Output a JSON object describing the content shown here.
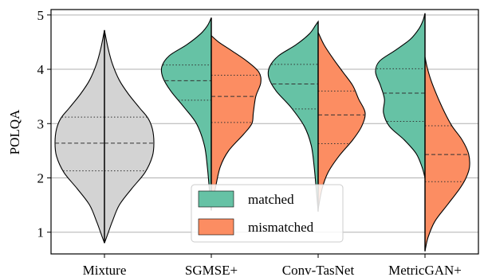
{
  "chart_data": {
    "type": "violin",
    "ylabel": "POLQA",
    "ylim": [
      0.6,
      5.1
    ],
    "yticks": [
      1,
      2,
      3,
      4,
      5
    ],
    "grid": "horizontal",
    "legend_placement": "lower-center",
    "categories": [
      "Mixture",
      "SGMSE+",
      "Conv-TasNet",
      "MetricGAN+"
    ],
    "series": [
      {
        "name": "matched",
        "color": "#66c2a5"
      },
      {
        "name": "mismatched",
        "color": "#fc8d62"
      }
    ],
    "single_color": "#d3d3d3",
    "violins": [
      {
        "category": "Mixture",
        "mode": "full",
        "range": [
          0.8,
          4.72
        ],
        "quartiles": [
          2.13,
          2.64,
          3.12
        ],
        "profile": [
          [
            0.8,
            0.0
          ],
          [
            1.0,
            0.08
          ],
          [
            1.2,
            0.16
          ],
          [
            1.5,
            0.3
          ],
          [
            1.8,
            0.55
          ],
          [
            2.1,
            0.82
          ],
          [
            2.4,
            0.97
          ],
          [
            2.65,
            1.0
          ],
          [
            2.9,
            0.97
          ],
          [
            3.1,
            0.88
          ],
          [
            3.3,
            0.7
          ],
          [
            3.55,
            0.48
          ],
          [
            3.8,
            0.3
          ],
          [
            4.1,
            0.16
          ],
          [
            4.4,
            0.07
          ],
          [
            4.72,
            0.0
          ]
        ]
      },
      {
        "category": "SGMSE+",
        "mode": "split",
        "left": {
          "series": "matched",
          "range": [
            1.4,
            4.95
          ],
          "quartiles": [
            3.43,
            3.79,
            4.08
          ],
          "profile": [
            [
              1.4,
              0.0
            ],
            [
              1.8,
              0.04
            ],
            [
              2.2,
              0.08
            ],
            [
              2.6,
              0.14
            ],
            [
              3.0,
              0.3
            ],
            [
              3.3,
              0.55
            ],
            [
              3.6,
              0.82
            ],
            [
              3.85,
              0.98
            ],
            [
              4.05,
              1.0
            ],
            [
              4.25,
              0.85
            ],
            [
              4.45,
              0.5
            ],
            [
              4.65,
              0.22
            ],
            [
              4.8,
              0.08
            ],
            [
              4.95,
              0.0
            ]
          ]
        },
        "right": {
          "series": "mismatched",
          "range": [
            1.45,
            4.62
          ],
          "quartiles": [
            3.02,
            3.5,
            3.89
          ],
          "profile": [
            [
              1.45,
              0.0
            ],
            [
              1.8,
              0.08
            ],
            [
              2.2,
              0.18
            ],
            [
              2.5,
              0.35
            ],
            [
              2.8,
              0.65
            ],
            [
              3.0,
              0.82
            ],
            [
              3.2,
              0.85
            ],
            [
              3.5,
              0.9
            ],
            [
              3.75,
              1.0
            ],
            [
              3.95,
              0.96
            ],
            [
              4.15,
              0.72
            ],
            [
              4.35,
              0.4
            ],
            [
              4.5,
              0.15
            ],
            [
              4.62,
              0.0
            ]
          ]
        }
      },
      {
        "category": "Conv-TasNet",
        "mode": "split",
        "left": {
          "series": "matched",
          "range": [
            1.38,
            4.88
          ],
          "quartiles": [
            3.27,
            3.73,
            4.09
          ],
          "profile": [
            [
              1.38,
              0.0
            ],
            [
              1.8,
              0.04
            ],
            [
              2.2,
              0.08
            ],
            [
              2.6,
              0.14
            ],
            [
              2.95,
              0.28
            ],
            [
              3.3,
              0.55
            ],
            [
              3.6,
              0.85
            ],
            [
              3.85,
              1.0
            ],
            [
              4.05,
              0.98
            ],
            [
              4.25,
              0.8
            ],
            [
              4.45,
              0.45
            ],
            [
              4.65,
              0.18
            ],
            [
              4.8,
              0.06
            ],
            [
              4.88,
              0.0
            ]
          ]
        },
        "right": {
          "series": "mismatched",
          "range": [
            1.42,
            4.68
          ],
          "quartiles": [
            2.63,
            3.16,
            3.6
          ],
          "profile": [
            [
              1.42,
              0.0
            ],
            [
              1.8,
              0.08
            ],
            [
              2.1,
              0.2
            ],
            [
              2.4,
              0.42
            ],
            [
              2.7,
              0.7
            ],
            [
              2.95,
              0.88
            ],
            [
              3.2,
              0.95
            ],
            [
              3.45,
              0.82
            ],
            [
              3.7,
              0.7
            ],
            [
              3.95,
              0.5
            ],
            [
              4.2,
              0.3
            ],
            [
              4.45,
              0.12
            ],
            [
              4.68,
              0.0
            ]
          ]
        }
      },
      {
        "category": "MetricGAN+",
        "mode": "split",
        "left": {
          "series": "matched",
          "range": [
            2.0,
            5.03
          ],
          "quartiles": [
            3.04,
            3.56,
            4.01
          ],
          "profile": [
            [
              2.0,
              0.0
            ],
            [
              2.2,
              0.06
            ],
            [
              2.45,
              0.18
            ],
            [
              2.7,
              0.42
            ],
            [
              2.95,
              0.72
            ],
            [
              3.2,
              0.84
            ],
            [
              3.45,
              0.82
            ],
            [
              3.7,
              0.9
            ],
            [
              3.95,
              1.0
            ],
            [
              4.15,
              0.92
            ],
            [
              4.35,
              0.6
            ],
            [
              4.55,
              0.3
            ],
            [
              4.75,
              0.12
            ],
            [
              4.9,
              0.04
            ],
            [
              5.03,
              0.0
            ]
          ]
        },
        "right": {
          "series": "mismatched",
          "range": [
            0.65,
            4.23
          ],
          "quartiles": [
            1.93,
            2.43,
            2.96
          ],
          "profile": [
            [
              0.65,
              0.0
            ],
            [
              0.9,
              0.06
            ],
            [
              1.2,
              0.2
            ],
            [
              1.5,
              0.45
            ],
            [
              1.8,
              0.7
            ],
            [
              2.0,
              0.83
            ],
            [
              2.2,
              0.9
            ],
            [
              2.45,
              0.88
            ],
            [
              2.7,
              0.75
            ],
            [
              2.95,
              0.55
            ],
            [
              3.2,
              0.4
            ],
            [
              3.5,
              0.25
            ],
            [
              3.8,
              0.12
            ],
            [
              4.05,
              0.04
            ],
            [
              4.23,
              0.0
            ]
          ]
        }
      }
    ]
  }
}
